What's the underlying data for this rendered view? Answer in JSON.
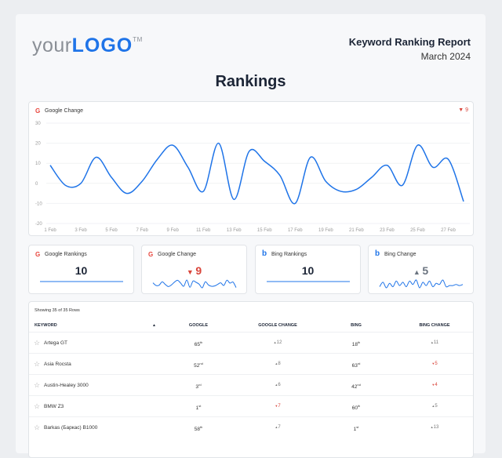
{
  "header": {
    "logo_text_light": "your",
    "logo_text_bold": "LOGO",
    "logo_tm": "TM",
    "report_title": "Keyword Ranking Report",
    "report_date": "March 2024"
  },
  "page_title": "Rankings",
  "colors": {
    "accent": "#1f74e8",
    "negative": "#d9443a",
    "text": "#1c2536"
  },
  "chart_data": {
    "type": "line",
    "title": "Google Change",
    "badge": "9",
    "badge_direction": "down",
    "x": [
      "1 Feb",
      "2 Feb",
      "3 Feb",
      "4 Feb",
      "5 Feb",
      "6 Feb",
      "7 Feb",
      "8 Feb",
      "9 Feb",
      "10 Feb",
      "11 Feb",
      "12 Feb",
      "13 Feb",
      "14 Feb",
      "15 Feb",
      "16 Feb",
      "17 Feb",
      "18 Feb",
      "19 Feb",
      "20 Feb",
      "21 Feb",
      "22 Feb",
      "23 Feb",
      "24 Feb",
      "25 Feb",
      "26 Feb",
      "27 Feb",
      "28 Feb"
    ],
    "x_tick_labels": [
      "1 Feb",
      "3 Feb",
      "5 Feb",
      "7 Feb",
      "9 Feb",
      "11 Feb",
      "13 Feb",
      "15 Feb",
      "17 Feb",
      "19 Feb",
      "21 Feb",
      "23 Feb",
      "25 Feb",
      "27 Feb"
    ],
    "values": [
      9,
      -1,
      0,
      13,
      3,
      -5,
      1,
      12,
      19,
      8,
      -4,
      20,
      -8,
      16,
      11,
      4,
      -10,
      13,
      1,
      -4,
      -3,
      3,
      9,
      -1,
      19,
      8,
      12,
      -9
    ],
    "ylim": [
      -20,
      30
    ],
    "y_ticks": [
      30,
      20,
      10,
      0,
      -10,
      -20
    ],
    "grid": true,
    "color": "#1f74e8"
  },
  "kpis": [
    {
      "title": "Google Rankings",
      "icon": "google-icon",
      "value": "10",
      "direction": "none"
    },
    {
      "title": "Google Change",
      "icon": "google-icon",
      "value": "9",
      "direction": "down"
    },
    {
      "title": "Bing Rankings",
      "icon": "bing-icon",
      "value": "10",
      "direction": "none"
    },
    {
      "title": "Bing Change",
      "icon": "bing-icon",
      "value": "5",
      "direction": "up"
    }
  ],
  "bing_change_sparkline": [
    2,
    6,
    1,
    5,
    2,
    7,
    3,
    6,
    2,
    7,
    4,
    8,
    1,
    6,
    3,
    7,
    2,
    5,
    4,
    8,
    2,
    3,
    3,
    4,
    3,
    4
  ],
  "table": {
    "showing": "Showing 35 of 35 Rows",
    "columns": [
      "KEYWORD",
      "GOOGLE",
      "GOOGLE CHANGE",
      "BING",
      "BING CHANGE"
    ],
    "sort_indicator": "▲",
    "rows": [
      {
        "keyword": "Artega GT",
        "google": "65",
        "google_sup": "th",
        "google_change": "12",
        "gc_dir": "up",
        "bing": "18",
        "bing_sup": "th",
        "bing_change": "11",
        "bc_dir": "up"
      },
      {
        "keyword": "Asia Rocsta",
        "google": "52",
        "google_sup": "nd",
        "google_change": "8",
        "gc_dir": "up",
        "bing": "63",
        "bing_sup": "rd",
        "bing_change": "5",
        "bc_dir": "down"
      },
      {
        "keyword": "Austin-Healey 3000",
        "google": "3",
        "google_sup": "rd",
        "google_change": "6",
        "gc_dir": "up",
        "bing": "42",
        "bing_sup": "nd",
        "bing_change": "4",
        "bc_dir": "down"
      },
      {
        "keyword": "BMW Z3",
        "google": "1",
        "google_sup": "st",
        "google_change": "7",
        "gc_dir": "down",
        "bing": "60",
        "bing_sup": "th",
        "bing_change": "5",
        "bc_dir": "up"
      },
      {
        "keyword": "Barkas (Баркас) B1000",
        "google": "58",
        "google_sup": "th",
        "google_change": "7",
        "gc_dir": "up",
        "bing": "1",
        "bing_sup": "st",
        "bing_change": "13",
        "bc_dir": "up"
      }
    ]
  }
}
